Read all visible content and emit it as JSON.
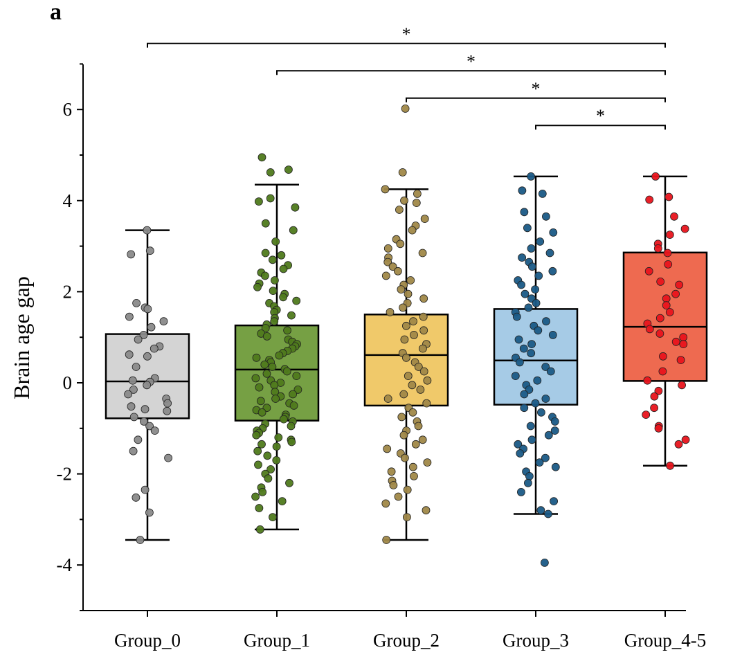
{
  "panel_label": "a",
  "chart_data": {
    "type": "boxplot",
    "ylabel": "Brain age gap",
    "xlabel": "",
    "ylim": [
      -5,
      7
    ],
    "y_ticks": [
      -4,
      -2,
      0,
      2,
      4,
      6
    ],
    "y_tick_labels": [
      "-4",
      "-2",
      "0",
      "2",
      "4",
      "6"
    ],
    "grid": false,
    "legend": "none",
    "groups": [
      {
        "name": "Group_0",
        "color": "#d4d4d4",
        "point_color": "#8a8a8a",
        "whisker_low": -3.45,
        "q1": -0.78,
        "median": 0.03,
        "q3": 1.07,
        "whisker_high": 3.35,
        "points": [
          3.35,
          2.9,
          2.82,
          1.75,
          1.65,
          1.62,
          1.45,
          1.35,
          1.22,
          1.05,
          0.95,
          0.8,
          0.75,
          0.62,
          0.58,
          0.35,
          0.1,
          0.05,
          0.02,
          -0.05,
          -0.15,
          -0.25,
          -0.35,
          -0.45,
          -0.52,
          -0.58,
          -0.62,
          -0.75,
          -0.85,
          -0.95,
          -1.05,
          -1.25,
          -1.5,
          -1.65,
          -2.35,
          -2.52,
          -2.85,
          -3.45
        ]
      },
      {
        "name": "Group_1",
        "color": "#76a044",
        "point_color": "#4f7a1c",
        "whisker_low": -3.22,
        "q1": -0.83,
        "median": 0.29,
        "q3": 1.26,
        "whisker_high": 4.35,
        "points": [
          4.95,
          4.68,
          4.62,
          4.05,
          3.98,
          3.85,
          3.5,
          3.35,
          3.1,
          2.85,
          2.8,
          2.7,
          2.58,
          2.5,
          2.42,
          2.35,
          2.25,
          2.18,
          2.1,
          2.02,
          1.95,
          1.88,
          1.8,
          1.75,
          1.68,
          1.6,
          1.55,
          1.48,
          1.42,
          1.35,
          1.28,
          1.2,
          1.15,
          1.08,
          1.02,
          0.95,
          0.9,
          0.85,
          0.8,
          0.75,
          0.7,
          0.65,
          0.6,
          0.55,
          0.5,
          0.45,
          0.4,
          0.35,
          0.3,
          0.25,
          0.2,
          0.15,
          0.1,
          0.05,
          0.0,
          -0.05,
          -0.1,
          -0.15,
          -0.2,
          -0.25,
          -0.3,
          -0.35,
          -0.4,
          -0.45,
          -0.5,
          -0.55,
          -0.6,
          -0.65,
          -0.7,
          -0.75,
          -0.8,
          -0.85,
          -0.9,
          -0.95,
          -1.0,
          -1.05,
          -1.1,
          -1.15,
          -1.2,
          -1.25,
          -1.3,
          -1.35,
          -1.4,
          -1.5,
          -1.6,
          -1.7,
          -1.8,
          -1.9,
          -2.0,
          -2.1,
          -2.2,
          -2.3,
          -2.4,
          -2.5,
          -2.6,
          -2.75,
          -2.95,
          -3.22
        ]
      },
      {
        "name": "Group_2",
        "color": "#f0c96a",
        "point_color": "#a08848",
        "whisker_low": -3.45,
        "q1": -0.5,
        "median": 0.61,
        "q3": 1.5,
        "whisker_high": 4.25,
        "points": [
          6.02,
          4.62,
          4.25,
          4.15,
          4.0,
          3.95,
          3.8,
          3.6,
          3.45,
          3.35,
          3.15,
          3.05,
          2.95,
          2.85,
          2.75,
          2.65,
          2.55,
          2.45,
          2.35,
          2.25,
          2.15,
          2.05,
          1.95,
          1.85,
          1.75,
          1.65,
          1.55,
          1.45,
          1.35,
          1.25,
          1.15,
          1.05,
          0.95,
          0.85,
          0.75,
          0.65,
          0.55,
          0.45,
          0.35,
          0.25,
          0.15,
          0.05,
          -0.05,
          -0.15,
          -0.25,
          -0.35,
          -0.45,
          -0.55,
          -0.65,
          -0.75,
          -0.85,
          -0.95,
          -1.05,
          -1.15,
          -1.25,
          -1.35,
          -1.45,
          -1.55,
          -1.65,
          -1.75,
          -1.85,
          -1.95,
          -2.05,
          -2.15,
          -2.25,
          -2.35,
          -2.5,
          -2.65,
          -2.8,
          -2.95,
          -3.45
        ]
      },
      {
        "name": "Group_3",
        "color": "#a6cbe6",
        "point_color": "#1a5a86",
        "whisker_low": -2.88,
        "q1": -0.48,
        "median": 0.49,
        "q3": 1.62,
        "whisker_high": 4.53,
        "points": [
          4.53,
          4.22,
          4.15,
          3.75,
          3.65,
          3.4,
          3.3,
          3.1,
          2.95,
          2.85,
          2.75,
          2.65,
          2.55,
          2.45,
          2.35,
          2.25,
          2.15,
          2.05,
          1.95,
          1.85,
          1.75,
          1.65,
          1.55,
          1.45,
          1.35,
          1.25,
          1.15,
          1.05,
          0.95,
          0.85,
          0.75,
          0.65,
          0.55,
          0.45,
          0.35,
          0.25,
          0.15,
          0.05,
          -0.05,
          -0.15,
          -0.25,
          -0.35,
          -0.45,
          -0.55,
          -0.65,
          -0.75,
          -0.85,
          -0.95,
          -1.05,
          -1.15,
          -1.25,
          -1.35,
          -1.45,
          -1.55,
          -1.65,
          -1.75,
          -1.85,
          -1.95,
          -2.05,
          -2.2,
          -2.4,
          -2.6,
          -2.8,
          -2.88,
          -3.95
        ]
      },
      {
        "name": "Group_4-5",
        "color": "#ee6a50",
        "point_color": "#e8141c",
        "whisker_low": -1.82,
        "q1": 0.04,
        "median": 1.23,
        "q3": 2.86,
        "whisker_high": 4.53,
        "points": [
          4.53,
          4.08,
          4.02,
          3.65,
          3.38,
          3.25,
          3.05,
          2.95,
          2.85,
          2.6,
          2.45,
          2.22,
          2.15,
          1.95,
          1.85,
          1.7,
          1.55,
          1.42,
          1.3,
          1.18,
          1.08,
          1.0,
          0.9,
          0.85,
          0.58,
          0.5,
          0.25,
          0.05,
          -0.05,
          -0.18,
          -0.3,
          -0.55,
          -0.7,
          -0.95,
          -1.0,
          -1.25,
          -1.35,
          -1.82
        ]
      }
    ],
    "comparisons": [
      {
        "from": "Group_0",
        "to": "Group_4-5",
        "label": "*",
        "y": 7.45
      },
      {
        "from": "Group_1",
        "to": "Group_4-5",
        "label": "*",
        "y": 6.85
      },
      {
        "from": "Group_2",
        "to": "Group_4-5",
        "label": "*",
        "y": 6.25
      },
      {
        "from": "Group_3",
        "to": "Group_4-5",
        "label": "*",
        "y": 5.65
      }
    ]
  }
}
